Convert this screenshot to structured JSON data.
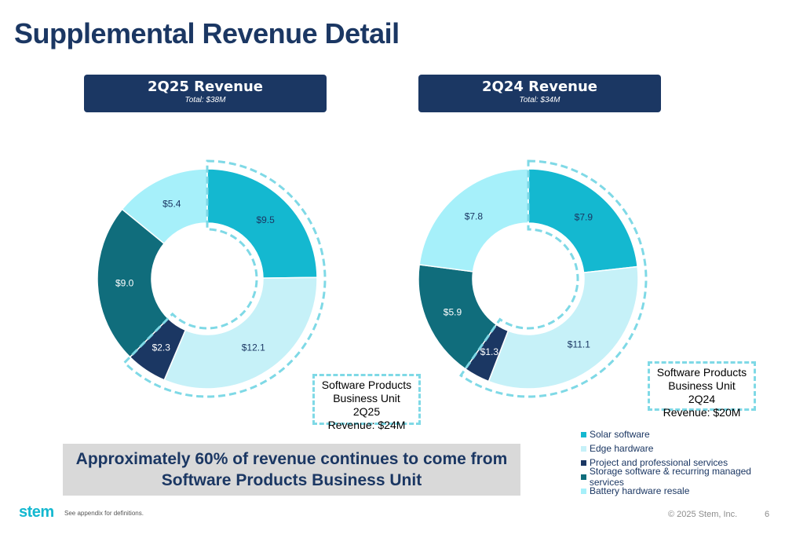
{
  "page": {
    "title": "Supplemental Revenue Detail",
    "footnote": "See appendix for definitions.",
    "copyright": "© 2025 Stem, Inc.",
    "page_number": "6",
    "logo_text": "stem"
  },
  "banner": {
    "line1": "Approximately 60% of revenue continues to come from",
    "line2": "Software Products Business Unit"
  },
  "colors": {
    "navy": "#1b3763",
    "solar_software": "#14b8d0",
    "edge_hardware": "#c6f1f8",
    "project_services": "#1b3763",
    "storage_software": "#106d7c",
    "battery_hardware": "#a6f0fa",
    "dashed": "#7fd9e6",
    "banner_bg": "#d9d9d9"
  },
  "chart_data": [
    {
      "type": "pie",
      "title": "2Q25 Revenue",
      "subtitle": "Total: $38M",
      "categories": [
        "Solar software",
        "Edge hardware",
        "Project and professional services",
        "Storage software & recurring managed services",
        "Battery hardware resale"
      ],
      "values": [
        9.5,
        12.1,
        2.3,
        9.0,
        5.4
      ],
      "labels": [
        "$9.5",
        "$12.1",
        "$2.3",
        "$9.0",
        "$5.4"
      ],
      "callout": [
        "Software Products",
        "Business Unit 2Q25",
        "Revenue: $24M"
      ]
    },
    {
      "type": "pie",
      "title": "2Q24 Revenue",
      "subtitle": "Total: $34M",
      "categories": [
        "Solar software",
        "Edge hardware",
        "Project and professional services",
        "Storage software & recurring managed services",
        "Battery hardware resale"
      ],
      "values": [
        7.9,
        11.1,
        1.3,
        5.9,
        7.8
      ],
      "labels": [
        "$7.9",
        "$11.1",
        "$1.3",
        "$5.9",
        "$7.8"
      ],
      "callout": [
        "Software Products",
        "Business Unit 2Q24",
        "Revenue: $20M"
      ]
    }
  ],
  "legend": [
    {
      "label": "Solar software",
      "color": "#14b8d0"
    },
    {
      "label": "Edge hardware",
      "color": "#c6f1f8"
    },
    {
      "label": "Project and professional services",
      "color": "#1b3763"
    },
    {
      "label": "Storage software & recurring managed services",
      "color": "#106d7c"
    },
    {
      "label": "Battery hardware resale",
      "color": "#a6f0fa"
    }
  ]
}
